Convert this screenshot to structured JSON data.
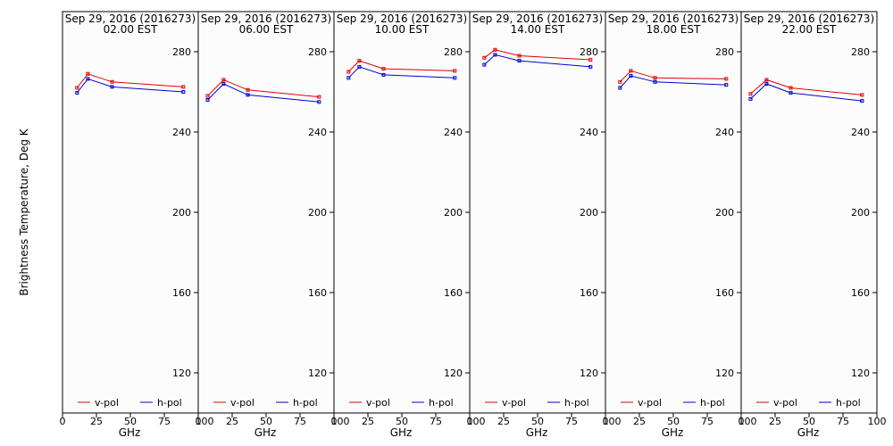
{
  "figure": {
    "ylabel": "Brightness Temperature, Deg K",
    "xlabel": "GHz",
    "background": "#fcfcfc",
    "colors": {
      "v_pol": "#e00000",
      "h_pol": "#0000d8"
    }
  },
  "chart_data": [
    {
      "type": "line",
      "title": "Sep 29, 2016 (2016273)",
      "subtitle": "02.00 EST",
      "xlabel": "GHz",
      "ylabel": "Brightness Temperature, Deg K",
      "xlim": [
        0,
        100
      ],
      "ylim": [
        100,
        295
      ],
      "xticks": [
        "0",
        "25",
        "50",
        "75",
        "100"
      ],
      "yticks": [
        "120",
        "160",
        "200",
        "240",
        "280"
      ],
      "legend": "bottom",
      "x": [
        10.7,
        18.7,
        36.5,
        89.0
      ],
      "series": [
        {
          "name": "v-pol",
          "values": [
            262,
            269,
            265,
            262.5
          ]
        },
        {
          "name": "h-pol",
          "values": [
            259.5,
            266.5,
            262.5,
            260
          ]
        }
      ]
    },
    {
      "type": "line",
      "title": "Sep 29, 2016 (2016273)",
      "subtitle": "06.00 EST",
      "xlabel": "GHz",
      "ylabel": "Brightness Temperature, Deg K",
      "xlim": [
        0,
        100
      ],
      "ylim": [
        100,
        295
      ],
      "xticks": [
        "0",
        "25",
        "50",
        "75",
        "100"
      ],
      "yticks": [
        "120",
        "160",
        "200",
        "240",
        "280"
      ],
      "legend": "bottom",
      "x": [
        6.9,
        18.7,
        36.5,
        89.0
      ],
      "series": [
        {
          "name": "v-pol",
          "values": [
            258,
            266,
            261,
            257.5
          ]
        },
        {
          "name": "h-pol",
          "values": [
            256,
            264,
            258.5,
            255
          ]
        }
      ]
    },
    {
      "type": "line",
      "title": "Sep 29, 2016 (2016273)",
      "subtitle": "10.00 EST",
      "xlabel": "GHz",
      "ylabel": "Brightness Temperature, Deg K",
      "xlim": [
        0,
        100
      ],
      "ylim": [
        100,
        295
      ],
      "xticks": [
        "0",
        "25",
        "50",
        "75",
        "100"
      ],
      "yticks": [
        "120",
        "160",
        "200",
        "240",
        "280"
      ],
      "legend": "bottom",
      "x": [
        10.7,
        18.7,
        36.5,
        89.0
      ],
      "series": [
        {
          "name": "v-pol",
          "values": [
            270,
            275.5,
            271.5,
            270.5
          ]
        },
        {
          "name": "h-pol",
          "values": [
            267,
            272.5,
            268.5,
            267
          ]
        }
      ]
    },
    {
      "type": "line",
      "title": "Sep 29, 2016 (2016273)",
      "subtitle": "14.00 EST",
      "xlabel": "GHz",
      "ylabel": "Brightness Temperature, Deg K",
      "xlim": [
        0,
        100
      ],
      "ylim": [
        100,
        295
      ],
      "xticks": [
        "0",
        "25",
        "50",
        "75",
        "100"
      ],
      "yticks": [
        "120",
        "160",
        "200",
        "240",
        "280"
      ],
      "legend": "bottom",
      "x": [
        10.7,
        18.7,
        36.5,
        89.0
      ],
      "series": [
        {
          "name": "v-pol",
          "values": [
            277,
            281,
            278,
            276
          ]
        },
        {
          "name": "h-pol",
          "values": [
            273.5,
            278.5,
            275.5,
            272.5
          ]
        }
      ]
    },
    {
      "type": "line",
      "title": "Sep 29, 2016 (2016273)",
      "subtitle": "18.00 EST",
      "xlabel": "GHz",
      "ylabel": "Brightness Temperature, Deg K",
      "xlim": [
        0,
        100
      ],
      "ylim": [
        100,
        295
      ],
      "xticks": [
        "0",
        "25",
        "50",
        "75",
        "100"
      ],
      "yticks": [
        "120",
        "160",
        "200",
        "240",
        "280"
      ],
      "legend": "bottom",
      "x": [
        10.7,
        18.7,
        36.5,
        89.0
      ],
      "series": [
        {
          "name": "v-pol",
          "values": [
            265,
            270.5,
            267,
            266.5
          ]
        },
        {
          "name": "h-pol",
          "values": [
            262,
            268,
            265,
            263.5
          ]
        }
      ]
    },
    {
      "type": "line",
      "title": "Sep 29, 2016 (2016273)",
      "subtitle": "22.00 EST",
      "xlabel": "GHz",
      "ylabel": "Brightness Temperature, Deg K",
      "xlim": [
        0,
        100
      ],
      "ylim": [
        100,
        295
      ],
      "xticks": [
        "0",
        "25",
        "50",
        "75",
        "100"
      ],
      "yticks": [
        "120",
        "160",
        "200",
        "240",
        "280"
      ],
      "legend": "bottom",
      "x": [
        6.9,
        18.7,
        36.5,
        89.0
      ],
      "series": [
        {
          "name": "v-pol",
          "values": [
            259,
            266,
            262,
            258.5
          ]
        },
        {
          "name": "h-pol",
          "values": [
            256.5,
            264,
            259.5,
            255.5
          ]
        }
      ]
    }
  ]
}
